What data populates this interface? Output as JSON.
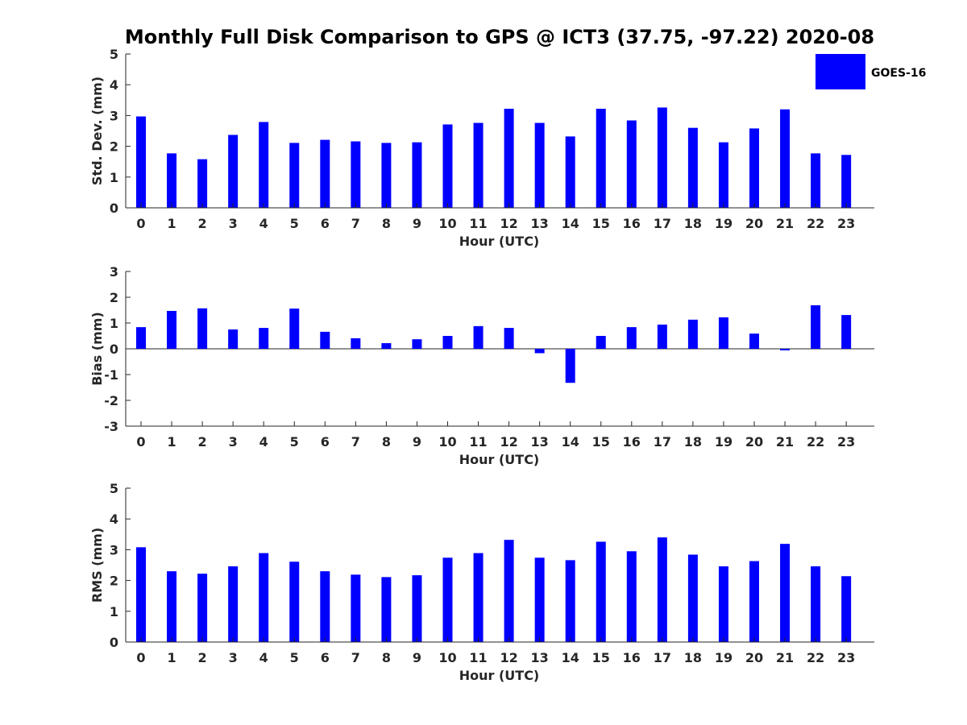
{
  "figure": {
    "title": "Monthly Full Disk Comparison to GPS @ ICT3 (37.75, -97.22) 2020-08"
  },
  "chart_data": [
    {
      "type": "bar",
      "id": "std",
      "categories": [
        "0",
        "1",
        "2",
        "3",
        "4",
        "5",
        "6",
        "7",
        "8",
        "9",
        "10",
        "11",
        "12",
        "13",
        "14",
        "15",
        "16",
        "17",
        "18",
        "19",
        "20",
        "21",
        "22",
        "23"
      ],
      "series": [
        {
          "name": "GOES-16",
          "color": "#0000ff",
          "values": [
            2.97,
            1.77,
            1.58,
            2.37,
            2.79,
            2.11,
            2.21,
            2.16,
            2.11,
            2.13,
            2.71,
            2.76,
            3.22,
            2.76,
            2.32,
            3.22,
            2.84,
            3.26,
            2.6,
            2.13,
            2.58,
            3.2,
            1.77,
            1.72
          ]
        }
      ],
      "xlabel": "Hour (UTC)",
      "ylabel": "Std. Dev. (mm)",
      "ylim": [
        0,
        5
      ],
      "yticks": [
        0,
        1,
        2,
        3,
        4,
        5
      ],
      "legend": "top-right",
      "grid": false
    },
    {
      "type": "bar",
      "id": "bias",
      "categories": [
        "0",
        "1",
        "2",
        "3",
        "4",
        "5",
        "6",
        "7",
        "8",
        "9",
        "10",
        "11",
        "12",
        "13",
        "14",
        "15",
        "16",
        "17",
        "18",
        "19",
        "20",
        "21",
        "22",
        "23"
      ],
      "series": [
        {
          "name": "GOES-16",
          "color": "#0000ff",
          "values": [
            0.84,
            1.47,
            1.57,
            0.75,
            0.81,
            1.56,
            0.66,
            0.41,
            0.22,
            0.37,
            0.5,
            0.88,
            0.81,
            -0.17,
            -1.32,
            0.5,
            0.84,
            0.94,
            1.13,
            1.22,
            0.59,
            -0.06,
            1.69,
            1.31
          ]
        }
      ],
      "xlabel": "Hour (UTC)",
      "ylabel": "Bias (mm)",
      "ylim": [
        -3,
        3
      ],
      "yticks": [
        -3,
        -2,
        -1,
        0,
        1,
        2,
        3
      ],
      "zero_line": true,
      "grid": false
    },
    {
      "type": "bar",
      "id": "rms",
      "categories": [
        "0",
        "1",
        "2",
        "3",
        "4",
        "5",
        "6",
        "7",
        "8",
        "9",
        "10",
        "11",
        "12",
        "13",
        "14",
        "15",
        "16",
        "17",
        "18",
        "19",
        "20",
        "21",
        "22",
        "23"
      ],
      "series": [
        {
          "name": "GOES-16",
          "color": "#0000ff",
          "values": [
            3.08,
            2.3,
            2.22,
            2.46,
            2.89,
            2.61,
            2.3,
            2.19,
            2.11,
            2.17,
            2.74,
            2.89,
            3.32,
            2.74,
            2.66,
            3.26,
            2.95,
            3.4,
            2.84,
            2.46,
            2.63,
            3.19,
            2.46,
            2.14
          ]
        }
      ],
      "xlabel": "Hour (UTC)",
      "ylabel": "RMS (mm)",
      "ylim": [
        0,
        5
      ],
      "yticks": [
        0,
        1,
        2,
        3,
        4,
        5
      ],
      "grid": false
    }
  ]
}
